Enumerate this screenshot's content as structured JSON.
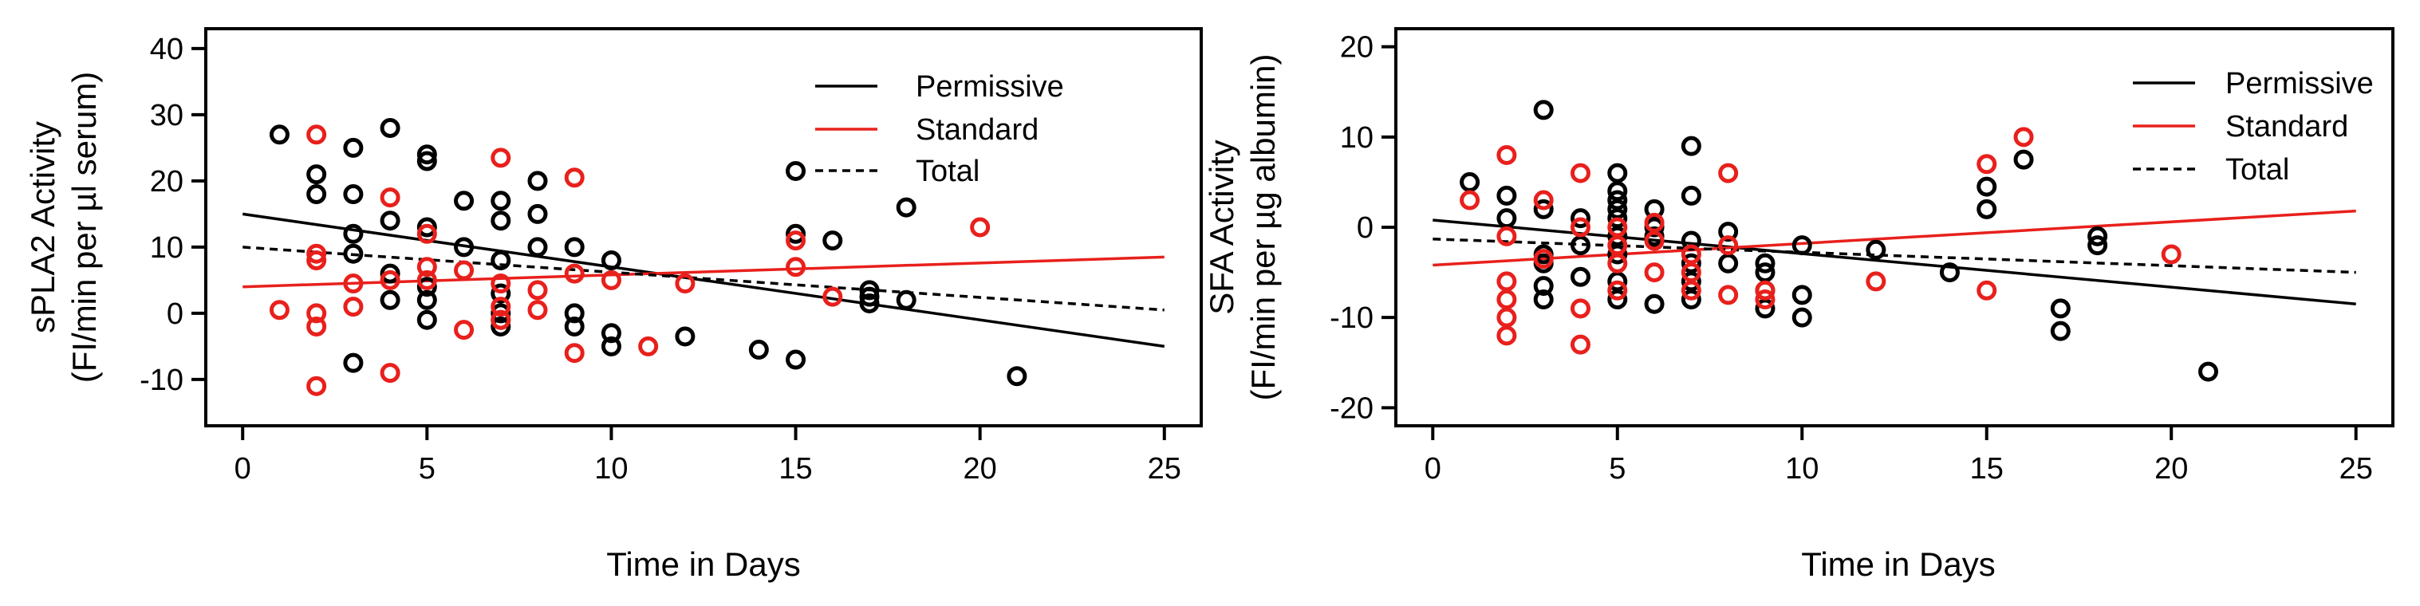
{
  "colors": {
    "permissive": "#000000",
    "standard": "#e8201c",
    "total": "#000000"
  },
  "legend": {
    "permissive": "Permissive",
    "standard": "Standard",
    "total": "Total"
  },
  "chart_data": [
    {
      "type": "scatter",
      "title": "",
      "xlabel": "Time in Days",
      "ylabel": [
        "sPLA2 Activity",
        "(FI/min per µl serum)"
      ],
      "xlim": [
        -1,
        26
      ],
      "ylim": [
        -17,
        43
      ],
      "xticks": [
        0,
        5,
        10,
        15,
        20,
        25
      ],
      "yticks": [
        -10,
        0,
        10,
        20,
        30,
        40
      ],
      "legend_position": "top-right",
      "series": [
        {
          "name": "Permissive",
          "color": "#000000",
          "points": [
            [
              1,
              27
            ],
            [
              2,
              21
            ],
            [
              2,
              18
            ],
            [
              3,
              25
            ],
            [
              3,
              18
            ],
            [
              3,
              12
            ],
            [
              3,
              9
            ],
            [
              3,
              -7.5
            ],
            [
              4,
              28
            ],
            [
              4,
              14
            ],
            [
              4,
              6
            ],
            [
              4,
              2
            ],
            [
              5,
              24
            ],
            [
              5,
              23
            ],
            [
              5,
              13
            ],
            [
              5,
              4
            ],
            [
              5,
              2
            ],
            [
              5,
              -1
            ],
            [
              6,
              17
            ],
            [
              6,
              10
            ],
            [
              7,
              17
            ],
            [
              7,
              14
            ],
            [
              7,
              8
            ],
            [
              7,
              3
            ],
            [
              7,
              0
            ],
            [
              7,
              -1
            ],
            [
              7,
              -2
            ],
            [
              8,
              20
            ],
            [
              8,
              15
            ],
            [
              8,
              10
            ],
            [
              9,
              10
            ],
            [
              9,
              0
            ],
            [
              9,
              -2
            ],
            [
              10,
              8
            ],
            [
              10,
              -3
            ],
            [
              10,
              -5
            ],
            [
              12,
              -3.5
            ],
            [
              14,
              -5.5
            ],
            [
              15,
              21.5
            ],
            [
              15,
              12
            ],
            [
              15,
              -7
            ],
            [
              16,
              11
            ],
            [
              17,
              3.5
            ],
            [
              17,
              2.5
            ],
            [
              17,
              1.5
            ],
            [
              18,
              16
            ],
            [
              18,
              2
            ],
            [
              21,
              -9.5
            ]
          ]
        },
        {
          "name": "Standard",
          "color": "#e8201c",
          "points": [
            [
              1,
              0.5
            ],
            [
              2,
              27
            ],
            [
              2,
              9
            ],
            [
              2,
              8
            ],
            [
              2,
              0
            ],
            [
              2,
              -2
            ],
            [
              2,
              -11
            ],
            [
              3,
              4.5
            ],
            [
              3,
              1
            ],
            [
              4,
              17.5
            ],
            [
              4,
              5
            ],
            [
              4,
              -9
            ],
            [
              5,
              12
            ],
            [
              5,
              7
            ],
            [
              5,
              5
            ],
            [
              6,
              6.5
            ],
            [
              6,
              -2.5
            ],
            [
              7,
              23.5
            ],
            [
              7,
              4.5
            ],
            [
              7,
              1
            ],
            [
              7,
              -1
            ],
            [
              8,
              3.5
            ],
            [
              8,
              0.5
            ],
            [
              9,
              20.5
            ],
            [
              9,
              6
            ],
            [
              9,
              -6
            ],
            [
              10,
              5
            ],
            [
              11,
              -5
            ],
            [
              12,
              4.5
            ],
            [
              15,
              11
            ],
            [
              15,
              7
            ],
            [
              16,
              2.5
            ],
            [
              20,
              13
            ]
          ]
        }
      ],
      "lines": [
        {
          "name": "Permissive",
          "style": "solid",
          "color": "#000000",
          "x": [
            0,
            25
          ],
          "y": [
            15,
            -5
          ]
        },
        {
          "name": "Standard",
          "style": "solid",
          "color": "#e8201c",
          "x": [
            0,
            25
          ],
          "y": [
            4,
            8.5
          ]
        },
        {
          "name": "Total",
          "style": "dashed",
          "color": "#000000",
          "x": [
            0,
            25
          ],
          "y": [
            10,
            0.5
          ]
        }
      ]
    },
    {
      "type": "scatter",
      "title": "",
      "xlabel": "Time in Days",
      "ylabel": [
        "SFA Activity",
        "(FI/min per µg albumin)"
      ],
      "xlim": [
        -1,
        26
      ],
      "ylim": [
        -22,
        22
      ],
      "xticks": [
        0,
        5,
        10,
        15,
        20,
        25
      ],
      "yticks": [
        -20,
        -10,
        0,
        10,
        20
      ],
      "legend_position": "top-right",
      "series": [
        {
          "name": "Permissive",
          "color": "#000000",
          "points": [
            [
              1,
              5
            ],
            [
              2,
              3.5
            ],
            [
              2,
              1
            ],
            [
              3,
              13
            ],
            [
              3,
              2
            ],
            [
              3,
              -3
            ],
            [
              3,
              -4
            ],
            [
              3,
              -6.5
            ],
            [
              3,
              -8
            ],
            [
              4,
              1
            ],
            [
              4,
              -2
            ],
            [
              4,
              -5.5
            ],
            [
              5,
              6
            ],
            [
              5,
              4
            ],
            [
              5,
              3
            ],
            [
              5,
              2
            ],
            [
              5,
              1
            ],
            [
              5,
              -1
            ],
            [
              5,
              -3
            ],
            [
              5,
              -6
            ],
            [
              5,
              -8
            ],
            [
              6,
              2
            ],
            [
              6,
              0
            ],
            [
              6,
              -1
            ],
            [
              6,
              -8.5
            ],
            [
              7,
              9
            ],
            [
              7,
              3.5
            ],
            [
              7,
              -1.5
            ],
            [
              7,
              -4
            ],
            [
              7,
              -6
            ],
            [
              7,
              -8
            ],
            [
              8,
              -0.5
            ],
            [
              8,
              -4
            ],
            [
              9,
              -4
            ],
            [
              9,
              -5
            ],
            [
              9,
              -7
            ],
            [
              9,
              -9
            ],
            [
              10,
              -2
            ],
            [
              10,
              -7.5
            ],
            [
              10,
              -10
            ],
            [
              12,
              -2.5
            ],
            [
              14,
              -5
            ],
            [
              15,
              4.5
            ],
            [
              15,
              2
            ],
            [
              16,
              7.5
            ],
            [
              17,
              -9
            ],
            [
              17,
              -11.5
            ],
            [
              18,
              -1
            ],
            [
              18,
              -2
            ],
            [
              21,
              -16
            ]
          ]
        },
        {
          "name": "Standard",
          "color": "#e8201c",
          "points": [
            [
              1,
              3
            ],
            [
              2,
              8
            ],
            [
              2,
              -1
            ],
            [
              2,
              -6
            ],
            [
              2,
              -8
            ],
            [
              2,
              -10
            ],
            [
              2,
              -12
            ],
            [
              3,
              3
            ],
            [
              3,
              -3.5
            ],
            [
              4,
              6
            ],
            [
              4,
              0
            ],
            [
              4,
              -9
            ],
            [
              4,
              -13
            ],
            [
              5,
              0
            ],
            [
              5,
              -2
            ],
            [
              5,
              -4
            ],
            [
              5,
              -7
            ],
            [
              6,
              0.5
            ],
            [
              6,
              -1.5
            ],
            [
              6,
              -5
            ],
            [
              7,
              -3
            ],
            [
              7,
              -5
            ],
            [
              7,
              -7
            ],
            [
              8,
              6
            ],
            [
              8,
              -2
            ],
            [
              8,
              -7.5
            ],
            [
              9,
              -7
            ],
            [
              9,
              -8
            ],
            [
              12,
              -6
            ],
            [
              15,
              7
            ],
            [
              15,
              -7
            ],
            [
              16,
              10
            ],
            [
              20,
              -3
            ]
          ]
        }
      ],
      "lines": [
        {
          "name": "Permissive",
          "style": "solid",
          "color": "#000000",
          "x": [
            0,
            25
          ],
          "y": [
            0.8,
            -8.5
          ]
        },
        {
          "name": "Standard",
          "style": "solid",
          "color": "#e8201c",
          "x": [
            0,
            25
          ],
          "y": [
            -4.2,
            1.8
          ]
        },
        {
          "name": "Total",
          "style": "dashed",
          "color": "#000000",
          "x": [
            0,
            25
          ],
          "y": [
            -1.3,
            -5
          ]
        }
      ]
    }
  ]
}
